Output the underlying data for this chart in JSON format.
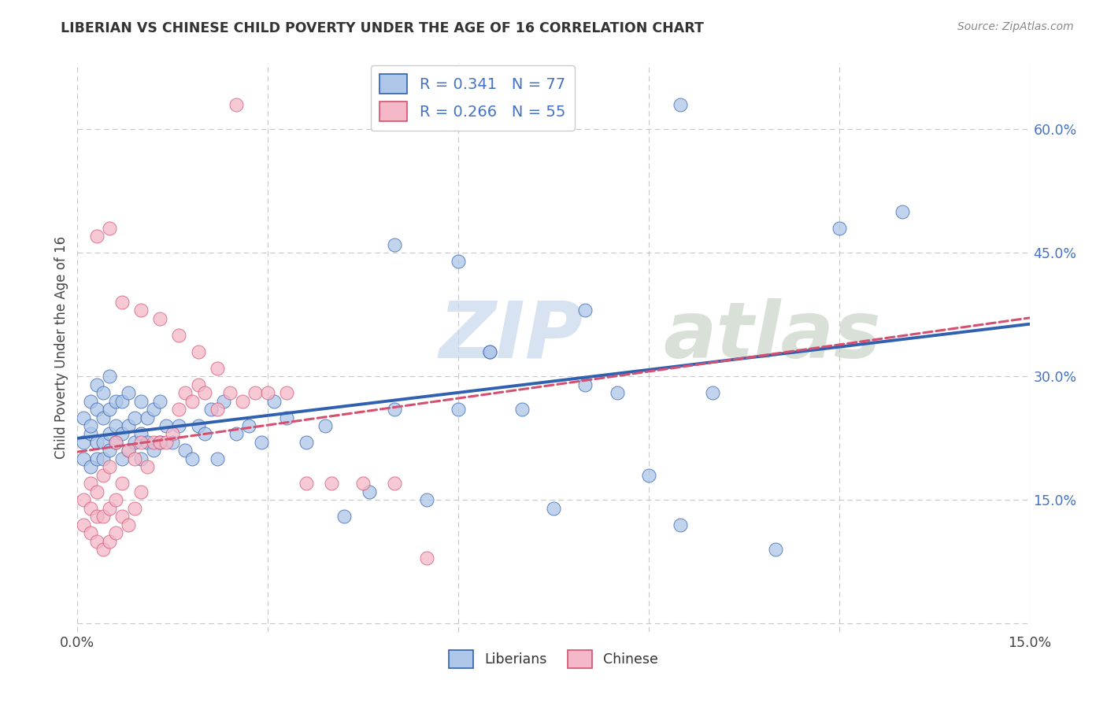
{
  "title": "LIBERIAN VS CHINESE CHILD POVERTY UNDER THE AGE OF 16 CORRELATION CHART",
  "source": "Source: ZipAtlas.com",
  "ylabel": "Child Poverty Under the Age of 16",
  "y_tick_positions": [
    0.0,
    0.15,
    0.3,
    0.45,
    0.6
  ],
  "y_tick_labels": [
    "",
    "15.0%",
    "30.0%",
    "45.0%",
    "60.0%"
  ],
  "x_lim": [
    0.0,
    0.15
  ],
  "y_lim": [
    -0.01,
    0.68
  ],
  "liberian_R": "0.341",
  "liberian_N": "77",
  "chinese_R": "0.266",
  "chinese_N": "55",
  "liberian_color": "#aec6e8",
  "chinese_color": "#f4b8c8",
  "liberian_line_color": "#3060b0",
  "chinese_line_color": "#d45070",
  "watermark_zip": "ZIP",
  "watermark_atlas": "atlas",
  "liberian_scatter_x": [
    0.001,
    0.001,
    0.001,
    0.002,
    0.002,
    0.002,
    0.002,
    0.003,
    0.003,
    0.003,
    0.003,
    0.004,
    0.004,
    0.004,
    0.004,
    0.005,
    0.005,
    0.005,
    0.005,
    0.006,
    0.006,
    0.006,
    0.007,
    0.007,
    0.007,
    0.008,
    0.008,
    0.008,
    0.009,
    0.009,
    0.01,
    0.01,
    0.01,
    0.011,
    0.011,
    0.012,
    0.012,
    0.013,
    0.013,
    0.014,
    0.015,
    0.016,
    0.017,
    0.018,
    0.019,
    0.02,
    0.021,
    0.022,
    0.023,
    0.025,
    0.027,
    0.029,
    0.031,
    0.033,
    0.036,
    0.039,
    0.042,
    0.046,
    0.05,
    0.055,
    0.06,
    0.065,
    0.07,
    0.075,
    0.08,
    0.085,
    0.09,
    0.095,
    0.1,
    0.11,
    0.12,
    0.13,
    0.05,
    0.06,
    0.065,
    0.08,
    0.095
  ],
  "liberian_scatter_y": [
    0.2,
    0.22,
    0.25,
    0.23,
    0.19,
    0.24,
    0.27,
    0.2,
    0.22,
    0.26,
    0.29,
    0.2,
    0.22,
    0.25,
    0.28,
    0.21,
    0.23,
    0.26,
    0.3,
    0.22,
    0.24,
    0.27,
    0.2,
    0.23,
    0.27,
    0.21,
    0.24,
    0.28,
    0.22,
    0.25,
    0.2,
    0.23,
    0.27,
    0.22,
    0.25,
    0.21,
    0.26,
    0.22,
    0.27,
    0.24,
    0.22,
    0.24,
    0.21,
    0.2,
    0.24,
    0.23,
    0.26,
    0.2,
    0.27,
    0.23,
    0.24,
    0.22,
    0.27,
    0.25,
    0.22,
    0.24,
    0.13,
    0.16,
    0.26,
    0.15,
    0.26,
    0.33,
    0.26,
    0.14,
    0.29,
    0.28,
    0.18,
    0.12,
    0.28,
    0.09,
    0.48,
    0.5,
    0.46,
    0.44,
    0.33,
    0.38,
    0.63
  ],
  "chinese_scatter_x": [
    0.001,
    0.001,
    0.002,
    0.002,
    0.002,
    0.003,
    0.003,
    0.003,
    0.004,
    0.004,
    0.004,
    0.005,
    0.005,
    0.005,
    0.006,
    0.006,
    0.006,
    0.007,
    0.007,
    0.008,
    0.008,
    0.009,
    0.009,
    0.01,
    0.01,
    0.011,
    0.012,
    0.013,
    0.014,
    0.015,
    0.016,
    0.017,
    0.018,
    0.019,
    0.02,
    0.022,
    0.024,
    0.026,
    0.028,
    0.03,
    0.033,
    0.036,
    0.04,
    0.045,
    0.05,
    0.055,
    0.003,
    0.005,
    0.007,
    0.01,
    0.013,
    0.016,
    0.019,
    0.022,
    0.025
  ],
  "chinese_scatter_y": [
    0.12,
    0.15,
    0.11,
    0.14,
    0.17,
    0.1,
    0.13,
    0.16,
    0.09,
    0.13,
    0.18,
    0.1,
    0.14,
    0.19,
    0.11,
    0.15,
    0.22,
    0.13,
    0.17,
    0.12,
    0.21,
    0.14,
    0.2,
    0.16,
    0.22,
    0.19,
    0.22,
    0.22,
    0.22,
    0.23,
    0.26,
    0.28,
    0.27,
    0.29,
    0.28,
    0.26,
    0.28,
    0.27,
    0.28,
    0.28,
    0.28,
    0.17,
    0.17,
    0.17,
    0.17,
    0.08,
    0.47,
    0.48,
    0.39,
    0.38,
    0.37,
    0.35,
    0.33,
    0.31,
    0.63
  ],
  "grid_x_ticks": [
    0.0,
    0.03,
    0.06,
    0.09,
    0.12,
    0.15
  ],
  "x_tick_labels_show": [
    0.0,
    0.15
  ],
  "x_tick_labels": [
    "0.0%",
    "15.0%"
  ]
}
